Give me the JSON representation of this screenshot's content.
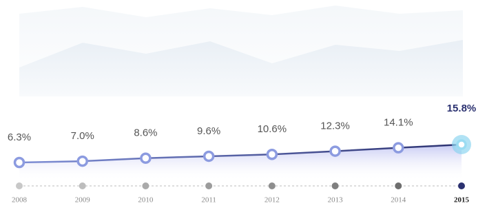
{
  "chart_data": {
    "type": "line",
    "categories": [
      "2008",
      "2009",
      "2010",
      "2011",
      "2012",
      "2013",
      "2014",
      "2015"
    ],
    "values": [
      6.3,
      7.0,
      8.6,
      9.6,
      10.6,
      12.3,
      14.1,
      15.8
    ],
    "value_labels": [
      "6.3%",
      "7.0%",
      "8.6%",
      "9.6%",
      "10.6%",
      "12.3%",
      "14.1%",
      "15.8%"
    ],
    "color": "#2b3170"
  }
}
